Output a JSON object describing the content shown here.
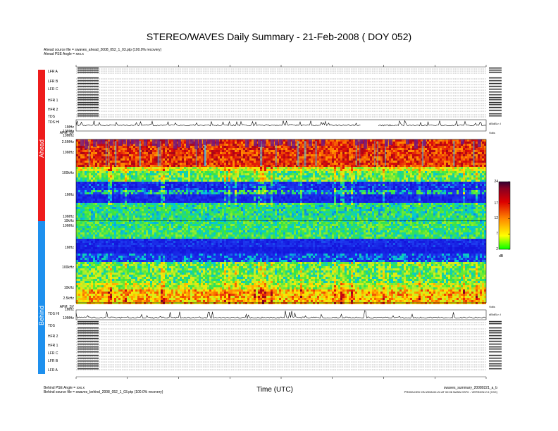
{
  "title": "STEREO/WAVES Daily Summary - 21-Feb-2008 ( DOY 052)",
  "header": {
    "ahead_source": "Ahead source file = swaves_ahead_2008_052_1_03.ptp (100.0% recovery)",
    "ahead_angle": "Ahead PSE Angle = xxx.x"
  },
  "sidebar": {
    "ahead": "Ahead",
    "behind": "Behind",
    "ahead_color": "#ee1c1c",
    "behind_color": "#1e90ee"
  },
  "ahead_rows": [
    {
      "label": "LFR A",
      "y": 102
    },
    {
      "label": "LFR B",
      "y": 116
    },
    {
      "label": "LFR C",
      "y": 127
    },
    {
      "label": "HFR 1",
      "y": 143
    },
    {
      "label": "HFR 2",
      "y": 156
    },
    {
      "label": "TDS",
      "y": 166
    },
    {
      "label": "TDS HI",
      "y": 174
    }
  ],
  "behind_rows": [
    {
      "label": "TDS HI",
      "y": 446
    },
    {
      "label": "TDS",
      "y": 463
    },
    {
      "label": "HFR 2",
      "y": 478
    },
    {
      "label": "HFR 1",
      "y": 491
    },
    {
      "label": "LFR C",
      "y": 502
    },
    {
      "label": "LFR B",
      "y": 513
    },
    {
      "label": "LFR A",
      "y": 526
    }
  ],
  "freq_labels": [
    {
      "text": "2.5MHz",
      "y": 202
    },
    {
      "text": "10MHz",
      "y": 217
    },
    {
      "text": "100kHz",
      "y": 246
    },
    {
      "text": "1MHz",
      "y": 277
    },
    {
      "text": "10MHz",
      "y": 308
    },
    {
      "text": "10kHz",
      "y": 314
    },
    {
      "text": "10MHz",
      "y": 321
    },
    {
      "text": "1MHz",
      "y": 352
    },
    {
      "text": "100kHz",
      "y": 380
    },
    {
      "text": "10kHz",
      "y": 409
    },
    {
      "text": "2.5kHz",
      "y": 424
    }
  ],
  "small_axis_labels": [
    {
      "text": "1MHz",
      "y": 181
    },
    {
      "text": "10MHz",
      "y": 187
    },
    {
      "text": "APM_SV",
      "y": 189
    },
    {
      "text": "10MHz",
      "y": 193
    },
    {
      "text": "APM_SV",
      "y": 436
    },
    {
      "text": "1MHz",
      "y": 440
    },
    {
      "text": "10MHz",
      "y": 452
    }
  ],
  "right_labels": [
    {
      "text": "dB/dB-n I",
      "y": 176
    },
    {
      "text": "Volts",
      "y": 189
    },
    {
      "text": "Volts",
      "y": 436
    },
    {
      "text": "dB/dB-n I",
      "y": 447
    }
  ],
  "colorbar": {
    "ticks": [
      {
        "text": "24",
        "v": 24
      },
      {
        "text": "17",
        "v": 17
      },
      {
        "text": "12",
        "v": 12
      },
      {
        "text": "7",
        "v": 7
      },
      {
        "text": "2",
        "v": 2
      }
    ],
    "unit": "dB",
    "min": 2,
    "max": 24
  },
  "x_axis_title": "Time (UTC)",
  "footer": {
    "behind_angle": "Behind PSE Angle = xxx.x",
    "behind_source": "Behind source file = swaves_behind_2008_052_1_03.ptp (100.0% recovery)",
    "product_id": "swaves_summary_20080221_a_b",
    "produced": "PRODUCED ON 2008-02-24 AT 02:06 NASA GSFC - VERSION 2.0 (XXX)"
  }
}
